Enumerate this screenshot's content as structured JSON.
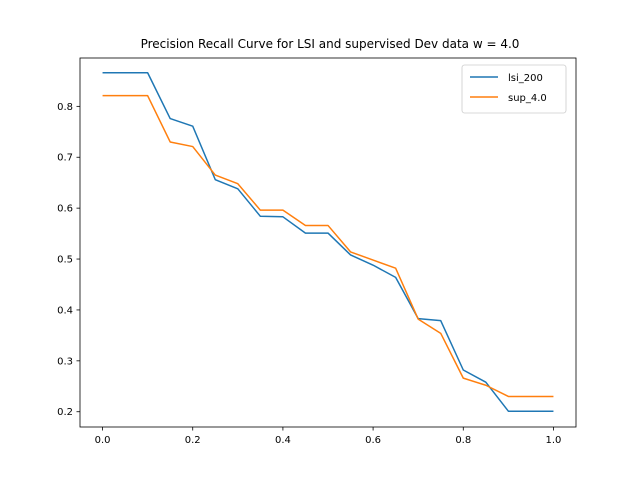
{
  "chart_data": {
    "type": "line",
    "title": "Precision Recall Curve for LSI and supervised Dev data w = 4.0",
    "xlabel": "",
    "ylabel": "",
    "xlim": [
      -0.05,
      1.05
    ],
    "ylim": [
      0.17,
      0.895
    ],
    "xticks": [
      0.0,
      0.2,
      0.4,
      0.6,
      0.8,
      1.0
    ],
    "xtick_labels": [
      "0.0",
      "0.2",
      "0.4",
      "0.6",
      "0.8",
      "1.0"
    ],
    "yticks": [
      0.2,
      0.3,
      0.4,
      0.5,
      0.6,
      0.7,
      0.8
    ],
    "ytick_labels": [
      "0.2",
      "0.3",
      "0.4",
      "0.5",
      "0.6",
      "0.7",
      "0.8"
    ],
    "grid": false,
    "legend": "top-right",
    "x": [
      0.0,
      0.05,
      0.1,
      0.15,
      0.2,
      0.25,
      0.3,
      0.35,
      0.4,
      0.45,
      0.5,
      0.55,
      0.6,
      0.65,
      0.7,
      0.75,
      0.8,
      0.85,
      0.9,
      0.95,
      1.0
    ],
    "series": [
      {
        "name": "lsi_200",
        "color": "#1f77b4",
        "values": [
          0.866,
          0.866,
          0.866,
          0.776,
          0.761,
          0.656,
          0.638,
          0.584,
          0.583,
          0.551,
          0.551,
          0.508,
          0.488,
          0.464,
          0.383,
          0.379,
          0.282,
          0.258,
          0.201,
          0.201,
          0.201
        ]
      },
      {
        "name": "sup_4.0",
        "color": "#ff7f0e",
        "values": [
          0.821,
          0.821,
          0.821,
          0.73,
          0.721,
          0.665,
          0.648,
          0.596,
          0.596,
          0.566,
          0.566,
          0.514,
          0.498,
          0.482,
          0.382,
          0.354,
          0.266,
          0.252,
          0.23,
          0.23,
          0.23
        ]
      }
    ]
  }
}
